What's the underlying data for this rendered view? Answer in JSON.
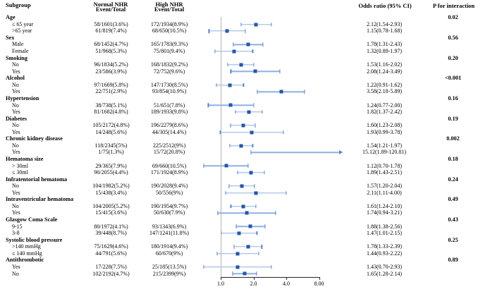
{
  "header": {
    "subgroup": "Subgroup",
    "normal_nhr_line1": "Normal NHR",
    "normal_nhr_line2": "Event/Total",
    "high_nhr_line1": "High NHR",
    "high_nhr_line2": "Event/Total",
    "odds_ratio": "Odds ratio (95% CI)",
    "p_interaction": "P for interaction"
  },
  "colors": {
    "marker": "#2457a7",
    "ci_line": "#8fb0e0",
    "ci_cap": "#5585cc",
    "reference_line": "#b3b3b3",
    "axis_line": "#262626",
    "text": "#000000"
  },
  "chart_data": {
    "type": "forest",
    "or_axis": {
      "scale": "log2",
      "reference_value": 1,
      "ticks": [
        {
          "label": "1.0",
          "value": 1
        },
        {
          "label": "2.0",
          "value": 2
        },
        {
          "label": "4.0",
          "value": 4
        },
        {
          "label": "8.00",
          "value": 8
        }
      ]
    },
    "groups": [
      {
        "label": "Age",
        "p": "0.02",
        "rows": [
          {
            "label": "≤ 65 year",
            "normal": "58/1601(3.6%)",
            "high": "172/1934(8.9%)",
            "or": 2.12,
            "lo": 1.54,
            "hi": 2.93,
            "or_text": "2.12(1.54-2.93)"
          },
          {
            "label": ">65 year",
            "normal": "61/819(7.4%)",
            "high": "68/650(10.5%)",
            "or": 1.15,
            "lo": 0.78,
            "hi": 1.68,
            "or_text": "1.15(0.78-1.68)"
          }
        ]
      },
      {
        "label": "Sex",
        "p": "0.56",
        "rows": [
          {
            "label": "Male",
            "normal": "68/1452(4.7%)",
            "high": "165/1783(9.3%)",
            "or": 1.78,
            "lo": 1.31,
            "hi": 2.43,
            "or_text": "1.78(1.31-2.43)"
          },
          {
            "label": "Female",
            "normal": "51/968(5.3%)",
            "high": "75/801(9.4%)",
            "or": 1.32,
            "lo": 0.89,
            "hi": 1.97,
            "or_text": "1.32(0.89-1.97)"
          }
        ]
      },
      {
        "label": "Smoking",
        "p": "0.20",
        "rows": [
          {
            "label": "No",
            "normal": "96/1834(5.2%)",
            "high": "168/1832(9.2%)",
            "or": 1.53,
            "lo": 1.16,
            "hi": 2.02,
            "or_text": "1.53(1.16-2.02)"
          },
          {
            "label": "Yes",
            "normal": "23/586(3.9%)",
            "high": "72/752(9.6%)",
            "or": 2.08,
            "lo": 1.24,
            "hi": 3.49,
            "or_text": "2.08(1.24-3.49)"
          }
        ]
      },
      {
        "label": "Alcohol",
        "p": "<0.001",
        "rows": [
          {
            "label": "No",
            "normal": "97/1669(5.8%)",
            "high": "147/1730(8.5%)",
            "or": 1.22,
            "lo": 0.91,
            "hi": 1.62,
            "or_text": "1.22(0.91-1.62)"
          },
          {
            "label": "Yes",
            "normal": "22/751(2.9%)",
            "high": "93/854(10.9%)",
            "or": 3.58,
            "lo": 2.18,
            "hi": 5.89,
            "or_text": "3.58(2.18-5.89)"
          }
        ]
      },
      {
        "label": "Hypertension",
        "p": "0.16",
        "rows": [
          {
            "label": "No",
            "normal": "38/738(5.1%)",
            "high": "51/651(7.8%)",
            "or": 1.24,
            "lo": 0.77,
            "hi": 2.0,
            "or_text": "1.24(0.77-2.00)"
          },
          {
            "label": "Yes",
            "normal": "81/1682(4.8%)",
            "high": "189/1933(9.8%)",
            "or": 1.82,
            "lo": 1.37,
            "hi": 2.42,
            "or_text": "1.82(1.37-2.42)"
          }
        ]
      },
      {
        "label": "Diabetes",
        "p": "0.19",
        "rows": [
          {
            "label": "No",
            "normal": "105/2172(4.8%)",
            "high": "196/2279(8.6%)",
            "or": 1.6,
            "lo": 1.23,
            "hi": 2.08,
            "or_text": "1.60(1.23-2.08)"
          },
          {
            "label": "Yes",
            "normal": "14/248(5.6%)",
            "high": "44/305(14.4%)",
            "or": 1.93,
            "lo": 0.99,
            "hi": 3.78,
            "or_text": "1.93(0.99-3.78)"
          }
        ]
      },
      {
        "label": "Chronic kidney disease",
        "p": "0.002",
        "rows": [
          {
            "label": "No",
            "normal": "118/2345(5%)",
            "high": "225/2512(9%)",
            "or": 1.54,
            "lo": 1.21,
            "hi": 1.97,
            "or_text": "1.54(1.21-1.97)"
          },
          {
            "label": "Yes",
            "normal": "1/75(1.3%)",
            "high": "15/72(20.8%)",
            "or": 15.12,
            "lo": 1.89,
            "hi": 120.81,
            "or_text": "15.12(1.89-120.81)"
          }
        ]
      },
      {
        "label": "Hematoma size",
        "p": "0.18",
        "rows": [
          {
            "label": "> 30ml",
            "normal": "29/365(7.9%)",
            "high": "69/660(10.5%)",
            "or": 1.12,
            "lo": 0.7,
            "hi": 1.78,
            "or_text": "1.12(0.70-1.78)"
          },
          {
            "label": "≤ 30ml",
            "normal": "90/2055(4.4%)",
            "high": "171/1924(8.9%)",
            "or": 1.89,
            "lo": 1.43,
            "hi": 2.51,
            "or_text": "1.89(1.43-2.51)"
          }
        ]
      },
      {
        "label": "Infratentorial hematoma",
        "p": "0.24",
        "rows": [
          {
            "label": "No",
            "normal": "104/1982(5.2%)",
            "high": "190/2028(9.4%)",
            "or": 1.57,
            "lo": 1.2,
            "hi": 2.04,
            "or_text": "1.57(1.20-2.04)"
          },
          {
            "label": "Yes",
            "normal": "15/438(3.4%)",
            "high": "50/556(9%)",
            "or": 2.11,
            "lo": 1.11,
            "hi": 4.0,
            "or_text": "2.11(1.11-4.00)"
          }
        ]
      },
      {
        "label": "Intraventricular hematoma",
        "p": "0.49",
        "rows": [
          {
            "label": "No",
            "normal": "104/2005(5.2%)",
            "high": "190/1954(9.7%)",
            "or": 1.61,
            "lo": 1.24,
            "hi": 2.1,
            "or_text": "1.61(1.24-2.10)"
          },
          {
            "label": "Yes",
            "normal": "15/415(3.6%)",
            "high": "50/630(7.9%)",
            "or": 1.74,
            "lo": 0.94,
            "hi": 3.21,
            "or_text": "1.74(0.94-3.21)"
          }
        ]
      },
      {
        "label": "Glasgow Coma Scale",
        "p": "0.43",
        "rows": [
          {
            "label": "9-15",
            "normal": "80/1972(4.1%)",
            "high": "93/1343(6.9%)",
            "or": 1.88,
            "lo": 1.38,
            "hi": 2.56,
            "or_text": "1.88(1.38-2.56)"
          },
          {
            "label": "3-8",
            "normal": "39/448(8.7%)",
            "high": "147/1241(11.8%)",
            "or": 1.47,
            "lo": 1.01,
            "hi": 2.15,
            "or_text": "1.47(1.01-2.15)"
          }
        ]
      },
      {
        "label": "Systolic blood pressure",
        "p": "0.25",
        "rows": [
          {
            "label": ">140 mmHg",
            "normal": "75/1629(4.6%)",
            "high": "180/1914(9.4%)",
            "or": 1.78,
            "lo": 1.33,
            "hi": 2.39,
            "or_text": "1.78(1.33-2.39)"
          },
          {
            "label": "≤ 140 mmHg",
            "normal": "44/791(5.6%)",
            "high": "60/670(9%)",
            "or": 1.44,
            "lo": 0.93,
            "hi": 2.22,
            "or_text": "1.44(0.93-2.22)"
          }
        ]
      },
      {
        "label": "Antithrombotic",
        "p": "0.89",
        "rows": [
          {
            "label": "Yes",
            "normal": "17/228(7.5%)",
            "high": "25/185(13.5%)",
            "or": 1.43,
            "lo": 0.7,
            "hi": 2.93,
            "or_text": "1.43(0.70-2.93)"
          },
          {
            "label": "No",
            "normal": "102/2192(4.7%)",
            "high": "215/2399(9%)",
            "or": 1.65,
            "lo": 1.28,
            "hi": 2.14,
            "or_text": "1.65(1.28-2.14)"
          }
        ]
      }
    ]
  }
}
